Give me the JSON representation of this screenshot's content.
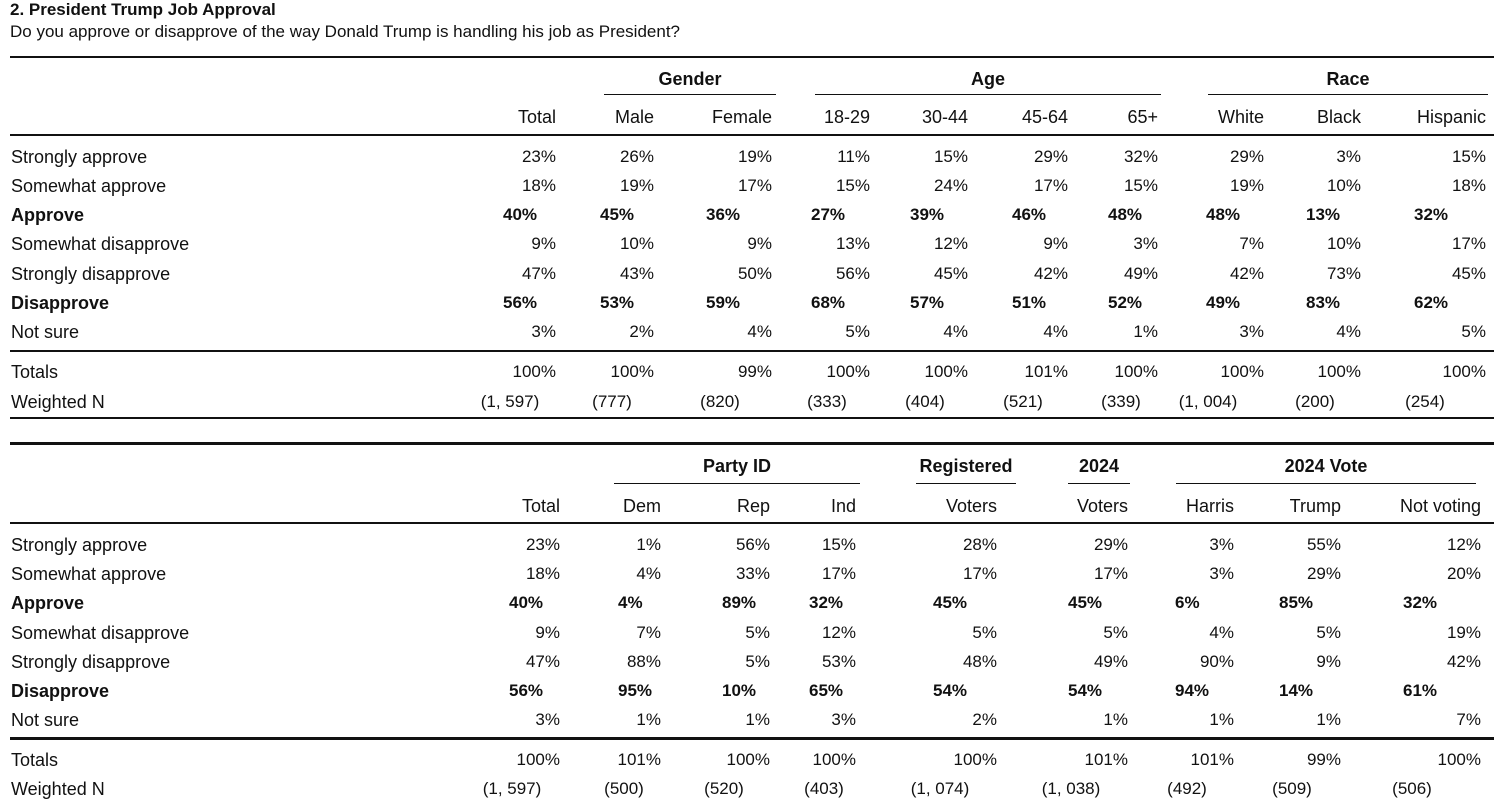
{
  "title": "2. President Trump Job Approval",
  "question": "Do you approve or disapprove of the way Donald Trump is handling his job as President?",
  "table1": {
    "groups": [
      {
        "label": "Gender"
      },
      {
        "label": "Age"
      },
      {
        "label": "Race"
      }
    ],
    "columns": [
      "Total",
      "Male",
      "Female",
      "18-29",
      "30-44",
      "45-64",
      "65+",
      "White",
      "Black",
      "Hispanic"
    ],
    "rows": [
      {
        "label": "Strongly approve",
        "bold": false,
        "values": [
          "23%",
          "26%",
          "19%",
          "11%",
          "15%",
          "29%",
          "32%",
          "29%",
          "3%",
          "15%"
        ]
      },
      {
        "label": "Somewhat approve",
        "bold": false,
        "values": [
          "18%",
          "19%",
          "17%",
          "15%",
          "24%",
          "17%",
          "15%",
          "19%",
          "10%",
          "18%"
        ]
      },
      {
        "label": "Approve",
        "bold": true,
        "values": [
          "40%",
          "45%",
          "36%",
          "27%",
          "39%",
          "46%",
          "48%",
          "48%",
          "13%",
          "32%"
        ]
      },
      {
        "label": "Somewhat disapprove",
        "bold": false,
        "values": [
          "9%",
          "10%",
          "9%",
          "13%",
          "12%",
          "9%",
          "3%",
          "7%",
          "10%",
          "17%"
        ]
      },
      {
        "label": "Strongly disapprove",
        "bold": false,
        "values": [
          "47%",
          "43%",
          "50%",
          "56%",
          "45%",
          "42%",
          "49%",
          "42%",
          "73%",
          "45%"
        ]
      },
      {
        "label": "Disapprove",
        "bold": true,
        "values": [
          "56%",
          "53%",
          "59%",
          "68%",
          "57%",
          "51%",
          "52%",
          "49%",
          "83%",
          "62%"
        ]
      },
      {
        "label": "Not sure",
        "bold": false,
        "values": [
          "3%",
          "2%",
          "4%",
          "5%",
          "4%",
          "4%",
          "1%",
          "3%",
          "4%",
          "5%"
        ]
      }
    ],
    "totals": {
      "label": "Totals",
      "values": [
        "100%",
        "100%",
        "99%",
        "100%",
        "100%",
        "101%",
        "100%",
        "100%",
        "100%",
        "100%"
      ]
    },
    "weighted": {
      "label": "Weighted N",
      "values": [
        "(1, 597)",
        "(777)",
        "(820)",
        "(333)",
        "(404)",
        "(521)",
        "(339)",
        "(1, 004)",
        "(200)",
        "(254)"
      ]
    }
  },
  "table2": {
    "groups": [
      {
        "label": "Party ID"
      },
      {
        "label": "Registered"
      },
      {
        "label": "2024"
      },
      {
        "label": "2024 Vote"
      }
    ],
    "columns": [
      "Total",
      "Dem",
      "Rep",
      "Ind",
      "Voters",
      "Voters",
      "Harris",
      "Trump",
      "Not voting"
    ],
    "rows": [
      {
        "label": "Strongly approve",
        "bold": false,
        "values": [
          "23%",
          "1%",
          "56%",
          "15%",
          "28%",
          "29%",
          "3%",
          "55%",
          "12%"
        ]
      },
      {
        "label": "Somewhat approve",
        "bold": false,
        "values": [
          "18%",
          "4%",
          "33%",
          "17%",
          "17%",
          "17%",
          "3%",
          "29%",
          "20%"
        ]
      },
      {
        "label": "Approve",
        "bold": true,
        "values": [
          "40%",
          "4%",
          "89%",
          "32%",
          "45%",
          "45%",
          "6%",
          "85%",
          "32%"
        ]
      },
      {
        "label": "Somewhat disapprove",
        "bold": false,
        "values": [
          "9%",
          "7%",
          "5%",
          "12%",
          "5%",
          "5%",
          "4%",
          "5%",
          "19%"
        ]
      },
      {
        "label": "Strongly disapprove",
        "bold": false,
        "values": [
          "47%",
          "88%",
          "5%",
          "53%",
          "48%",
          "49%",
          "90%",
          "9%",
          "42%"
        ]
      },
      {
        "label": "Disapprove",
        "bold": true,
        "values": [
          "56%",
          "95%",
          "10%",
          "65%",
          "54%",
          "54%",
          "94%",
          "14%",
          "61%"
        ]
      },
      {
        "label": "Not sure",
        "bold": false,
        "values": [
          "3%",
          "1%",
          "1%",
          "3%",
          "2%",
          "1%",
          "1%",
          "1%",
          "7%"
        ]
      }
    ],
    "totals": {
      "label": "Totals",
      "values": [
        "100%",
        "101%",
        "100%",
        "100%",
        "100%",
        "101%",
        "101%",
        "99%",
        "100%"
      ]
    },
    "weighted": {
      "label": "Weighted N",
      "values": [
        "(1, 597)",
        "(500)",
        "(520)",
        "(403)",
        "(1, 074)",
        "(1, 038)",
        "(492)",
        "(509)",
        "(506)"
      ]
    }
  }
}
